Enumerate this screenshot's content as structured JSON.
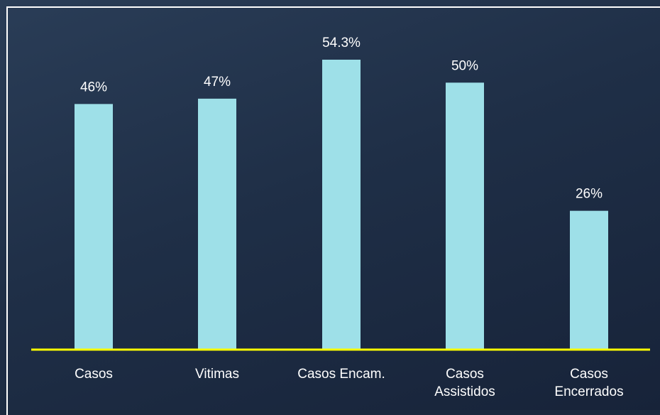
{
  "chart_data": {
    "type": "bar",
    "categories": [
      [
        "Casos"
      ],
      [
        "Vitimas"
      ],
      [
        "Casos Encam."
      ],
      [
        "Casos",
        "Assistidos"
      ],
      [
        "Casos",
        "Encerrados"
      ]
    ],
    "values": [
      46,
      47,
      54.3,
      50,
      26
    ],
    "value_labels": [
      "46%",
      "47%",
      "54.3%",
      "50%",
      "26%"
    ],
    "title": "",
    "xlabel": "",
    "ylabel": "",
    "ylim": [
      0,
      60
    ],
    "grid": false,
    "legend": "none",
    "colors": {
      "bar": "#9ee0e8",
      "baseline": "#ffff00",
      "text": "#ffffff"
    }
  }
}
